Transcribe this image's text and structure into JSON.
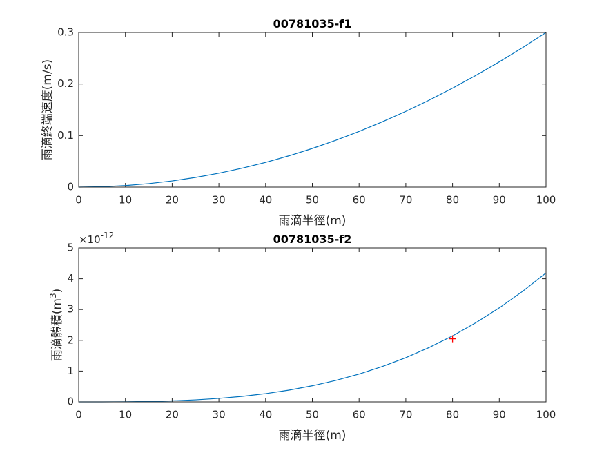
{
  "chart_data": [
    {
      "type": "line",
      "title": "00781035-f1",
      "xlabel": "雨滴半徑(m)",
      "ylabel": [
        "雨滴終端速度(m/s)"
      ],
      "series": [
        {
          "color": "#0072bd",
          "x": [
            0,
            5,
            10,
            15,
            20,
            25,
            30,
            35,
            40,
            45,
            50,
            55,
            60,
            65,
            70,
            75,
            80,
            85,
            90,
            95,
            100
          ],
          "values": [
            0,
            0.00075,
            0.003,
            0.00675,
            0.012,
            0.01875,
            0.027,
            0.03675,
            0.048,
            0.06075,
            0.075,
            0.09075,
            0.108,
            0.12675,
            0.147,
            0.16875,
            0.192,
            0.21675,
            0.243,
            0.27075,
            0.3
          ]
        }
      ],
      "xlim": [
        0,
        100
      ],
      "xticks": [
        0,
        10,
        20,
        30,
        40,
        50,
        60,
        70,
        80,
        90,
        100
      ],
      "ylim": [
        0,
        0.3
      ],
      "yticks": [
        0,
        0.1,
        0.2,
        0.3
      ]
    },
    {
      "type": "line",
      "title": "00781035-f2",
      "xlabel": "雨滴半徑(m)",
      "ylabel": [
        "雨滴體積(m",
        "3",
        ")"
      ],
      "multiplier": [
        "×10",
        "-12"
      ],
      "series": [
        {
          "color": "#0072bd",
          "x": [
            0,
            5,
            10,
            15,
            20,
            25,
            30,
            35,
            40,
            45,
            50,
            55,
            60,
            65,
            70,
            75,
            80,
            85,
            90,
            95,
            100
          ],
          "values": [
            0,
            0.000524,
            0.00419,
            0.01414,
            0.03351,
            0.06545,
            0.1131,
            0.1796,
            0.2681,
            0.3817,
            0.5236,
            0.6969,
            0.9048,
            1.1503,
            1.4368,
            1.7671,
            2.1447,
            2.5724,
            3.0536,
            3.5914,
            4.1888
          ]
        },
        {
          "color": "#ff0000",
          "marker": "+",
          "x": [
            80
          ],
          "values": [
            2.05
          ]
        }
      ],
      "xlim": [
        0,
        100
      ],
      "xticks": [
        0,
        10,
        20,
        30,
        40,
        50,
        60,
        70,
        80,
        90,
        100
      ],
      "ylim": [
        0,
        5
      ],
      "yticks": [
        0,
        1,
        2,
        3,
        4,
        5
      ]
    }
  ]
}
